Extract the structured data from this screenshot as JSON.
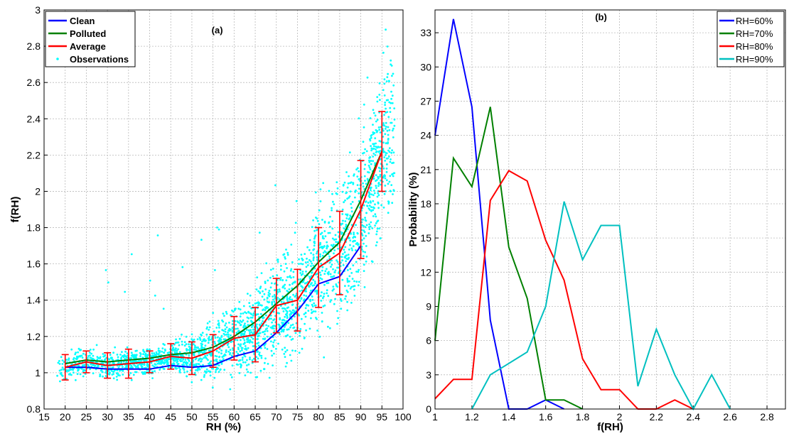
{
  "chart_data": [
    {
      "type": "scatter",
      "panel_label": "(a)",
      "xlabel": "RH (%)",
      "ylabel": "f(RH)",
      "xlim": [
        15,
        100
      ],
      "ylim": [
        0.8,
        3
      ],
      "xticks": [
        15,
        20,
        25,
        30,
        35,
        40,
        45,
        50,
        55,
        60,
        65,
        70,
        75,
        80,
        85,
        90,
        95,
        100
      ],
      "yticks": [
        0.8,
        1,
        1.2,
        1.4,
        1.6,
        1.8,
        2,
        2.2,
        2.4,
        2.6,
        2.8,
        3
      ],
      "grid": true,
      "legend_position": "top-left",
      "series": [
        {
          "name": "Clean",
          "color": "#0000ff",
          "x": [
            20,
            25,
            30,
            35,
            40,
            45,
            50,
            55,
            60,
            65,
            70,
            75,
            80,
            85,
            90
          ],
          "y": [
            1.03,
            1.03,
            1.02,
            1.02,
            1.02,
            1.04,
            1.03,
            1.04,
            1.09,
            1.12,
            1.22,
            1.34,
            1.49,
            1.53,
            1.7
          ]
        },
        {
          "name": "Polluted",
          "color": "#008000",
          "x": [
            20,
            25,
            30,
            35,
            40,
            45,
            50,
            55,
            60,
            65,
            70,
            75,
            80,
            85,
            90,
            95
          ],
          "y": [
            1.05,
            1.07,
            1.06,
            1.07,
            1.08,
            1.1,
            1.11,
            1.14,
            1.2,
            1.28,
            1.38,
            1.48,
            1.61,
            1.72,
            1.95,
            2.22
          ]
        },
        {
          "name": "Average",
          "color": "#ff0000",
          "x": [
            20,
            25,
            30,
            35,
            40,
            45,
            50,
            55,
            60,
            65,
            70,
            75,
            80,
            85,
            90,
            95
          ],
          "y": [
            1.03,
            1.06,
            1.04,
            1.05,
            1.06,
            1.09,
            1.08,
            1.12,
            1.19,
            1.21,
            1.37,
            1.4,
            1.58,
            1.66,
            1.9,
            2.22
          ],
          "err": [
            0.07,
            0.06,
            0.07,
            0.08,
            0.06,
            0.07,
            0.09,
            0.09,
            0.12,
            0.15,
            0.15,
            0.17,
            0.22,
            0.23,
            0.27,
            0.22
          ]
        },
        {
          "name": "Observations",
          "color": "#00ffff",
          "kind": "scatter"
        }
      ]
    },
    {
      "type": "line",
      "panel_label": "(b)",
      "xlabel": "f(RH)",
      "ylabel": "Probability (%)",
      "xlim": [
        1,
        2.9
      ],
      "ylim": [
        0,
        35
      ],
      "xticks": [
        1,
        1.2,
        1.4,
        1.6,
        1.8,
        2,
        2.2,
        2.4,
        2.6,
        2.8
      ],
      "yticks": [
        0,
        3,
        6,
        9,
        12,
        15,
        18,
        21,
        24,
        27,
        30,
        33
      ],
      "grid": true,
      "legend_position": "top-right",
      "series": [
        {
          "name": "RH=60%",
          "color": "#0000ff",
          "x": [
            1.0,
            1.1,
            1.2,
            1.3,
            1.4,
            1.5,
            1.6,
            1.7
          ],
          "y": [
            24,
            34.2,
            26.5,
            7.8,
            0,
            0,
            0.8,
            0
          ]
        },
        {
          "name": "RH=70%",
          "color": "#008000",
          "x": [
            1.0,
            1.1,
            1.2,
            1.3,
            1.4,
            1.5,
            1.6,
            1.7,
            1.8
          ],
          "y": [
            6,
            22,
            19.5,
            26.5,
            14.2,
            9.7,
            0.8,
            0.8,
            0
          ]
        },
        {
          "name": "RH=80%",
          "color": "#ff0000",
          "x": [
            1.0,
            1.1,
            1.2,
            1.3,
            1.4,
            1.5,
            1.6,
            1.7,
            1.8,
            1.9,
            2.0,
            2.1,
            2.2,
            2.3,
            2.4
          ],
          "y": [
            0.9,
            2.6,
            2.6,
            18.3,
            20.9,
            20.0,
            14.8,
            11.3,
            4.4,
            1.7,
            1.7,
            0,
            0,
            0.8,
            0
          ]
        },
        {
          "name": "RH=90%",
          "color": "#00c0c0",
          "x": [
            1.2,
            1.3,
            1.4,
            1.5,
            1.6,
            1.7,
            1.8,
            1.9,
            2.0,
            2.1,
            2.2,
            2.3,
            2.4,
            2.5,
            2.6
          ],
          "y": [
            0,
            3.0,
            4.0,
            5.0,
            9.0,
            18.2,
            13.1,
            16.1,
            16.1,
            2.0,
            7.0,
            3.0,
            0,
            3.0,
            0
          ]
        }
      ]
    }
  ]
}
